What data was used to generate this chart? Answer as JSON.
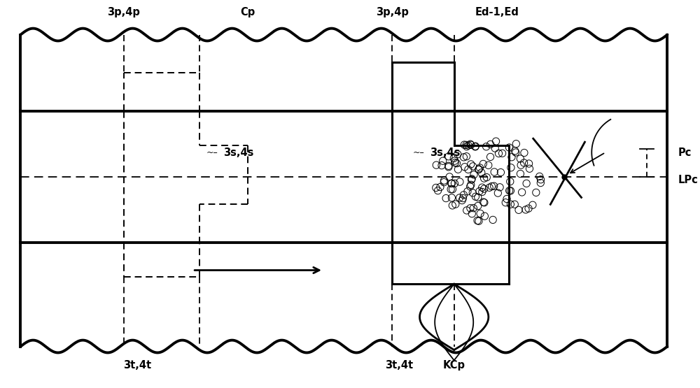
{
  "bg_color": "#ffffff",
  "line_color": "#000000",
  "fig_width": 10.0,
  "fig_height": 5.55,
  "dpi": 100,
  "labels": {
    "3p4p_left": "3p,4p",
    "Cp": "Cp",
    "3p4p_right": "3p,4p",
    "Ed": "Ed-1,Ed",
    "3s4s_left": "3s,4s",
    "3s4s_right": "3s,4s",
    "3t4t_left": "3t,4t",
    "3t4t_right": "3t,4t",
    "Pc": "Pc",
    "LPc": "LPc",
    "KCp": "KCp"
  }
}
